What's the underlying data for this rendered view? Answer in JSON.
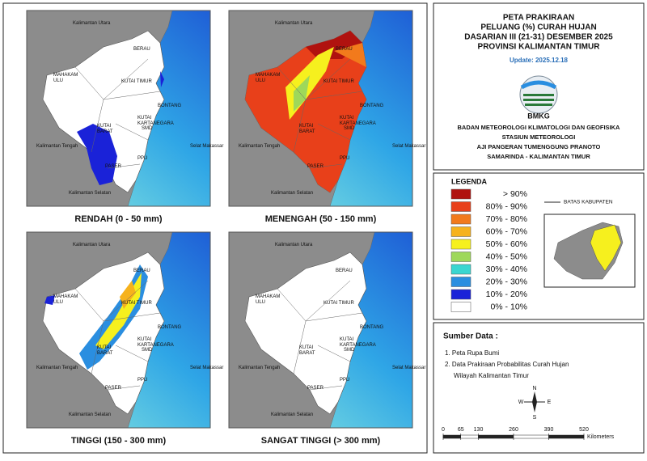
{
  "panels": [
    {
      "title": "RENDAH (0 - 50 mm)"
    },
    {
      "title": "MENENGAH (50 - 150 mm)"
    },
    {
      "title": "TINGGI (150 - 300 mm)"
    },
    {
      "title": "SANGAT TINGGI (> 300 mm)"
    }
  ],
  "map_labels": [
    {
      "lines": [
        "Kalimantan Utara"
      ]
    },
    {
      "lines": [
        "BERAU"
      ]
    },
    {
      "lines": [
        "MAHAKAM",
        "ULU"
      ]
    },
    {
      "lines": [
        "KUTAI TIMUR"
      ]
    },
    {
      "lines": [
        "BONTANG"
      ]
    },
    {
      "lines": [
        "KUTAI",
        "KARTANEGARA"
      ]
    },
    {
      "lines": [
        "KUTAI",
        "BARAT"
      ]
    },
    {
      "lines": [
        "SMD"
      ]
    },
    {
      "lines": [
        "Kalimantan Tengah"
      ]
    },
    {
      "lines": [
        "Selat Makassar"
      ]
    },
    {
      "lines": [
        "PPU"
      ]
    },
    {
      "lines": [
        "PASER"
      ]
    },
    {
      "lines": [
        "Kalimantan Selatan"
      ]
    }
  ],
  "header": {
    "title_lines": [
      "PETA PRAKIRAAN",
      "PELUANG (%) CURAH HUJAN",
      "DASARIAN III (21-31) DESEMBER 2025",
      "PROVINSI KALIMANTAN TIMUR"
    ],
    "update": "Update: 2025.12.18",
    "logo_text": "BMKG",
    "agency_lines": [
      "BADAN METEOROLOGI KLIMATOLOGI DAN GEOFISIKA",
      "STASIUN METEOROLOGI",
      "AJI PANGERAN TUMENGGUNG PRANOTO",
      "SAMARINDA - KALIMANTAN TIMUR"
    ]
  },
  "legend": {
    "title": "LEGENDA",
    "items": [
      {
        "label": "> 90%",
        "color": "#b0120f"
      },
      {
        "label": "80% - 90%",
        "color": "#e8401a"
      },
      {
        "label": "70% - 80%",
        "color": "#f27a1c"
      },
      {
        "label": "60% - 70%",
        "color": "#f6b21c"
      },
      {
        "label": "50% - 60%",
        "color": "#f6f01e"
      },
      {
        "label": "40% - 50%",
        "color": "#9ed85a"
      },
      {
        "label": "30% - 40%",
        "color": "#3ad6d0"
      },
      {
        "label": "20% - 30%",
        "color": "#2a8ee0"
      },
      {
        "label": "10% - 20%",
        "color": "#1a22d8"
      },
      {
        "label": "0% - 10%",
        "color": "#ffffff"
      }
    ],
    "boundary_label": "BATAS KABUPATEN"
  },
  "source": {
    "title": "Sumber Data :",
    "lines": [
      "1. Peta Rupa Bumi",
      "2. Data Prakiraan Probabilitas Curah Hujan",
      "Wilayah Kalimantan Timur"
    ]
  },
  "compass": {
    "n": "N",
    "w": "W",
    "e": "E",
    "s": "S"
  },
  "scale": {
    "ticks": [
      0,
      65,
      130,
      260,
      390,
      520
    ],
    "unit": "Kilometers"
  }
}
